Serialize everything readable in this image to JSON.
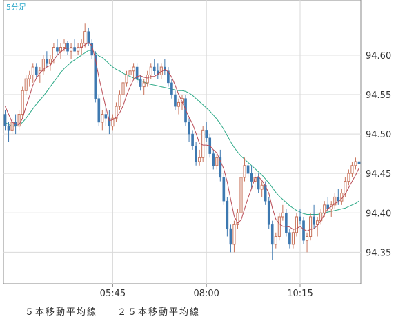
{
  "timeframe": "5分足",
  "colors": {
    "up_candle": "#c8735b",
    "down_candle": "#3d78b0",
    "ma5": "#b94a55",
    "ma25": "#2eaa88",
    "grid": "#d9d9d9",
    "axis": "#888888",
    "timeframe_text": "#2aa7c9"
  },
  "legend": [
    {
      "label": "５本移動平均線",
      "color": "#b94a55"
    },
    {
      "label": "２５本移動平均線",
      "color": "#2eaa88"
    }
  ],
  "chart_data": {
    "type": "candlestick",
    "y_ticks": [
      "94.60",
      "94.55",
      "94.50",
      "94.45",
      "94.40",
      "94.35"
    ],
    "ylim": [
      94.31,
      94.67
    ],
    "x_ticks": [
      {
        "label": "05:45",
        "bar": 31
      },
      {
        "label": "08:00",
        "bar": 58
      },
      {
        "label": "10:15",
        "bar": 85
      }
    ],
    "bars": 103,
    "ohlc": [
      [
        94.525,
        94.53,
        94.505,
        94.51
      ],
      [
        94.51,
        94.515,
        94.49,
        94.505
      ],
      [
        94.505,
        94.52,
        94.5,
        94.515
      ],
      [
        94.515,
        94.525,
        94.5,
        94.51
      ],
      [
        94.51,
        94.53,
        94.505,
        94.525
      ],
      [
        94.525,
        94.56,
        94.52,
        94.555
      ],
      [
        94.555,
        94.575,
        94.55,
        94.57
      ],
      [
        94.57,
        94.58,
        94.56,
        94.575
      ],
      [
        94.575,
        94.59,
        94.565,
        94.585
      ],
      [
        94.585,
        94.59,
        94.57,
        94.575
      ],
      [
        94.575,
        94.585,
        94.565,
        94.58
      ],
      [
        94.58,
        94.6,
        94.575,
        94.595
      ],
      [
        94.595,
        94.605,
        94.585,
        94.59
      ],
      [
        94.59,
        94.6,
        94.58,
        94.595
      ],
      [
        94.595,
        94.615,
        94.59,
        94.61
      ],
      [
        94.61,
        94.62,
        94.6,
        94.605
      ],
      [
        94.605,
        94.615,
        94.595,
        94.61
      ],
      [
        94.61,
        94.62,
        94.605,
        94.615
      ],
      [
        94.615,
        94.618,
        94.6,
        94.605
      ],
      [
        94.605,
        94.615,
        94.595,
        94.61
      ],
      [
        94.61,
        94.62,
        94.605,
        94.605
      ],
      [
        94.605,
        94.615,
        94.6,
        94.61
      ],
      [
        94.61,
        94.62,
        94.6,
        94.615
      ],
      [
        94.615,
        94.64,
        94.61,
        94.63
      ],
      [
        94.63,
        94.635,
        94.612,
        94.615
      ],
      [
        94.615,
        94.62,
        94.595,
        94.6
      ],
      [
        94.6,
        94.605,
        94.54,
        94.545
      ],
      [
        94.545,
        94.55,
        94.51,
        94.515
      ],
      [
        94.515,
        94.53,
        94.505,
        94.525
      ],
      [
        94.525,
        94.535,
        94.51,
        94.52
      ],
      [
        94.52,
        94.53,
        94.5,
        94.51
      ],
      [
        94.51,
        94.525,
        94.505,
        94.52
      ],
      [
        94.52,
        94.54,
        94.515,
        94.535
      ],
      [
        94.535,
        94.555,
        94.53,
        94.55
      ],
      [
        94.55,
        94.57,
        94.545,
        94.565
      ],
      [
        94.565,
        94.58,
        94.56,
        94.575
      ],
      [
        94.575,
        94.585,
        94.565,
        94.58
      ],
      [
        94.58,
        94.59,
        94.57,
        94.585
      ],
      [
        94.585,
        94.59,
        94.565,
        94.57
      ],
      [
        94.57,
        94.575,
        94.555,
        94.56
      ],
      [
        94.56,
        94.57,
        94.55,
        94.565
      ],
      [
        94.565,
        94.58,
        94.56,
        94.575
      ],
      [
        94.575,
        94.59,
        94.57,
        94.585
      ],
      [
        94.585,
        94.595,
        94.575,
        94.58
      ],
      [
        94.58,
        94.59,
        94.57,
        94.575
      ],
      [
        94.575,
        94.59,
        94.57,
        94.585
      ],
      [
        94.585,
        94.595,
        94.575,
        94.58
      ],
      [
        94.58,
        94.585,
        94.56,
        94.565
      ],
      [
        94.565,
        94.57,
        94.545,
        94.55
      ],
      [
        94.55,
        94.555,
        94.53,
        94.535
      ],
      [
        94.535,
        94.545,
        94.525,
        94.54
      ],
      [
        94.54,
        94.55,
        94.53,
        94.545
      ],
      [
        94.545,
        94.55,
        94.51,
        94.515
      ],
      [
        94.515,
        94.52,
        94.49,
        94.5
      ],
      [
        94.5,
        94.505,
        94.48,
        94.485
      ],
      [
        94.485,
        94.49,
        94.46,
        94.465
      ],
      [
        94.465,
        94.48,
        94.46,
        94.47
      ],
      [
        94.47,
        94.51,
        94.465,
        94.505
      ],
      [
        94.505,
        94.515,
        94.49,
        94.495
      ],
      [
        94.495,
        94.5,
        94.47,
        94.475
      ],
      [
        94.475,
        94.48,
        94.455,
        94.46
      ],
      [
        94.46,
        94.475,
        94.455,
        94.47
      ],
      [
        94.47,
        94.48,
        94.44,
        94.445
      ],
      [
        94.445,
        94.45,
        94.41,
        94.415
      ],
      [
        94.415,
        94.42,
        94.37,
        94.38
      ],
      [
        94.38,
        94.385,
        94.35,
        94.36
      ],
      [
        94.36,
        94.39,
        94.35,
        94.385
      ],
      [
        94.385,
        94.405,
        94.38,
        94.4
      ],
      [
        94.4,
        94.45,
        94.395,
        94.445
      ],
      [
        94.445,
        94.47,
        94.44,
        94.46
      ],
      [
        94.46,
        94.465,
        94.445,
        94.45
      ],
      [
        94.45,
        94.46,
        94.43,
        94.44
      ],
      [
        94.44,
        94.45,
        94.43,
        94.445
      ],
      [
        94.445,
        94.45,
        94.425,
        94.43
      ],
      [
        94.43,
        94.44,
        94.42,
        94.435
      ],
      [
        94.435,
        94.44,
        94.41,
        94.415
      ],
      [
        94.415,
        94.42,
        94.38,
        94.385
      ],
      [
        94.385,
        94.39,
        94.34,
        94.36
      ],
      [
        94.36,
        94.375,
        94.355,
        94.37
      ],
      [
        94.37,
        94.4,
        94.365,
        94.395
      ],
      [
        94.395,
        94.41,
        94.39,
        94.4
      ],
      [
        94.4,
        94.405,
        94.37,
        94.375
      ],
      [
        94.375,
        94.38,
        94.355,
        94.36
      ],
      [
        94.36,
        94.38,
        94.355,
        94.375
      ],
      [
        94.375,
        94.4,
        94.37,
        94.395
      ],
      [
        94.395,
        94.405,
        94.385,
        94.39
      ],
      [
        94.39,
        94.395,
        94.36,
        94.365
      ],
      [
        94.365,
        94.375,
        94.35,
        94.37
      ],
      [
        94.37,
        94.4,
        94.365,
        94.395
      ],
      [
        94.395,
        94.41,
        94.38,
        94.385
      ],
      [
        94.385,
        94.395,
        94.37,
        94.39
      ],
      [
        94.39,
        94.405,
        94.385,
        94.4
      ],
      [
        94.4,
        94.415,
        94.395,
        94.41
      ],
      [
        94.41,
        94.42,
        94.4,
        94.405
      ],
      [
        94.405,
        94.415,
        94.395,
        94.41
      ],
      [
        94.41,
        94.425,
        94.405,
        94.42
      ],
      [
        94.42,
        94.43,
        94.41,
        94.415
      ],
      [
        94.415,
        94.43,
        94.41,
        94.425
      ],
      [
        94.425,
        94.445,
        94.42,
        94.44
      ],
      [
        94.44,
        94.455,
        94.435,
        94.45
      ],
      [
        94.45,
        94.465,
        94.445,
        94.46
      ],
      [
        94.46,
        94.47,
        94.455,
        94.465
      ],
      [
        94.465,
        94.47,
        94.458,
        94.462
      ]
    ],
    "ma5": [
      94.535,
      94.525,
      94.515,
      94.513,
      94.512,
      94.52,
      94.535,
      94.548,
      94.562,
      94.571,
      94.577,
      94.582,
      94.585,
      94.587,
      94.594,
      94.6,
      94.604,
      94.608,
      94.609,
      94.609,
      94.609,
      94.609,
      94.61,
      94.613,
      94.616,
      94.612,
      94.595,
      94.572,
      94.553,
      94.534,
      94.517,
      94.518,
      94.521,
      94.527,
      94.536,
      94.549,
      94.56,
      94.569,
      94.573,
      94.574,
      94.572,
      94.571,
      94.573,
      94.573,
      94.576,
      94.579,
      94.582,
      94.579,
      94.572,
      94.562,
      94.55,
      94.541,
      94.531,
      94.521,
      94.513,
      94.501,
      94.488,
      94.486,
      94.486,
      94.485,
      94.48,
      94.476,
      94.466,
      94.456,
      94.439,
      94.417,
      94.396,
      94.387,
      94.391,
      94.405,
      94.419,
      94.431,
      94.444,
      94.446,
      94.441,
      94.434,
      94.425,
      94.406,
      94.392,
      94.386,
      94.383,
      94.383,
      94.382,
      94.379,
      94.38,
      94.383,
      94.379,
      94.377,
      94.379,
      94.38,
      94.384,
      94.39,
      94.398,
      94.405,
      94.408,
      94.412,
      94.414,
      94.418,
      94.424,
      94.432,
      94.44,
      94.448,
      94.457
    ],
    "ma25": [
      94.515,
      94.512,
      94.51,
      94.51,
      94.511,
      94.515,
      94.52,
      94.526,
      94.532,
      94.538,
      94.543,
      94.548,
      94.554,
      94.56,
      94.566,
      94.572,
      94.578,
      94.583,
      94.587,
      94.591,
      94.594,
      94.597,
      94.6,
      94.603,
      94.606,
      94.606,
      94.603,
      94.599,
      94.597,
      94.593,
      94.589,
      94.585,
      94.582,
      94.58,
      94.577,
      94.575,
      94.573,
      94.571,
      94.569,
      94.568,
      94.566,
      94.564,
      94.563,
      94.562,
      94.561,
      94.56,
      94.559,
      94.558,
      94.557,
      94.556,
      94.555,
      94.555,
      94.554,
      94.552,
      94.549,
      94.545,
      94.541,
      94.537,
      94.533,
      94.529,
      94.524,
      94.519,
      94.513,
      94.506,
      94.498,
      94.49,
      94.483,
      94.477,
      94.472,
      94.468,
      94.464,
      94.46,
      94.456,
      94.452,
      94.448,
      94.443,
      94.438,
      94.432,
      94.426,
      94.421,
      94.417,
      94.413,
      94.409,
      94.406,
      94.403,
      94.401,
      94.399,
      94.398,
      94.398,
      94.398,
      94.398,
      94.399,
      94.4,
      94.401,
      94.402,
      94.403,
      94.404,
      94.405,
      94.406,
      94.408,
      94.41,
      94.412,
      94.415
    ]
  }
}
